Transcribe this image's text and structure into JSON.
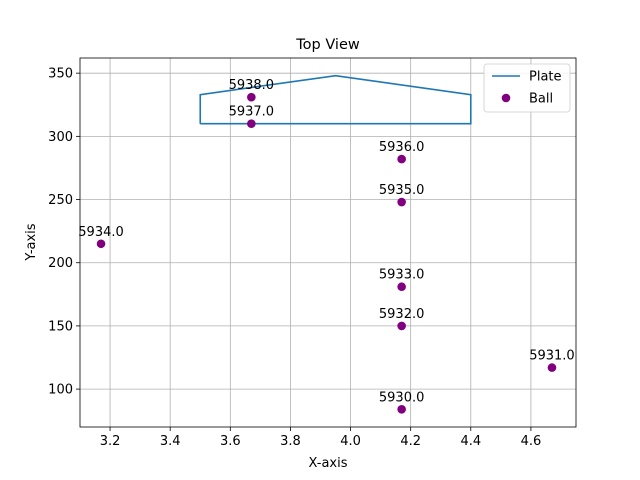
{
  "chart_data": {
    "type": "scatter",
    "title": "Top View",
    "xlabel": "X-axis",
    "ylabel": "Y-axis",
    "xlim": [
      3.1,
      4.75
    ],
    "ylim": [
      70,
      362
    ],
    "x_ticks": [
      3.2,
      3.4,
      3.6,
      3.8,
      4.0,
      4.2,
      4.4,
      4.6
    ],
    "x_tick_labels": [
      "3.2",
      "3.4",
      "3.6",
      "3.8",
      "4.0",
      "4.2",
      "4.4",
      "4.6"
    ],
    "y_ticks": [
      100,
      150,
      200,
      250,
      300,
      350
    ],
    "y_tick_labels": [
      "100",
      "150",
      "200",
      "250",
      "300",
      "350"
    ],
    "grid": true,
    "legend": {
      "placement": "top-right",
      "entries": [
        "Plate",
        "Ball"
      ]
    },
    "colors": {
      "plate": "#1f77b4",
      "ball": "#800080"
    },
    "series": [
      {
        "name": "Plate",
        "kind": "line",
        "points": [
          {
            "x": 3.5,
            "y": 310
          },
          {
            "x": 3.5,
            "y": 333
          },
          {
            "x": 3.95,
            "y": 348
          },
          {
            "x": 4.4,
            "y": 333
          },
          {
            "x": 4.4,
            "y": 310
          },
          {
            "x": 3.5,
            "y": 310
          }
        ]
      },
      {
        "name": "Ball",
        "kind": "scatter",
        "points": [
          {
            "x": 4.17,
            "y": 84,
            "label": "5930.0"
          },
          {
            "x": 4.67,
            "y": 117,
            "label": "5931.0"
          },
          {
            "x": 4.17,
            "y": 150,
            "label": "5932.0"
          },
          {
            "x": 4.17,
            "y": 181,
            "label": "5933.0"
          },
          {
            "x": 3.17,
            "y": 215,
            "label": "5934.0"
          },
          {
            "x": 4.17,
            "y": 248,
            "label": "5935.0"
          },
          {
            "x": 4.17,
            "y": 282,
            "label": "5936.0"
          },
          {
            "x": 3.67,
            "y": 310,
            "label": "5937.0"
          },
          {
            "x": 3.67,
            "y": 331,
            "label": "5938.0"
          }
        ]
      }
    ]
  }
}
